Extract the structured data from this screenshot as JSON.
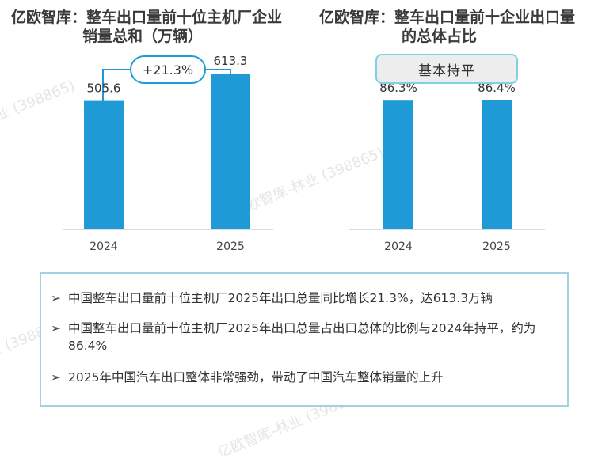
{
  "titles": {
    "left_line1": "亿欧智库：整车出口量前十位主机厂企业",
    "left_line2": "销量总和（万辆）",
    "right_line1": "亿欧智库：整车出口量前十企业出口量",
    "right_line2": "的总体占比"
  },
  "callouts": {
    "growth": "+21.3%",
    "flat": "基本持平"
  },
  "watermark": "亿欧智库-林业 (398865)",
  "chart_data": [
    {
      "type": "bar",
      "title": "亿欧智库：整车出口量前十位主机厂企业销量总和（万辆）",
      "categories": [
        "2024",
        "2025"
      ],
      "values": [
        505.6,
        613.3
      ],
      "value_labels": [
        "505.6",
        "613.3"
      ],
      "ylim": [
        0,
        700
      ],
      "color": "#1e9bd7",
      "grid": false
    },
    {
      "type": "bar",
      "title": "亿欧智库：整车出口量前十企业出口量的总体占比",
      "categories": [
        "2024",
        "2025"
      ],
      "values": [
        86.3,
        86.4
      ],
      "value_labels": [
        "86.3%",
        "86.4%"
      ],
      "ylim": [
        0,
        100
      ],
      "color": "#1e9bd7",
      "grid": false
    }
  ],
  "summary": {
    "bullet_symbol": "➢",
    "bullets": [
      "中国整车出口量前十位主机厂2025年出口总量同比增长21.3%，达613.3万辆",
      "中国整车出口量前十位主机厂2025年出口总量占出口总体的比例与2024年持平，约为86.4%",
      "2025年中国汽车出口整体非常强劲，带动了中国汽车整体销量的上升"
    ]
  }
}
